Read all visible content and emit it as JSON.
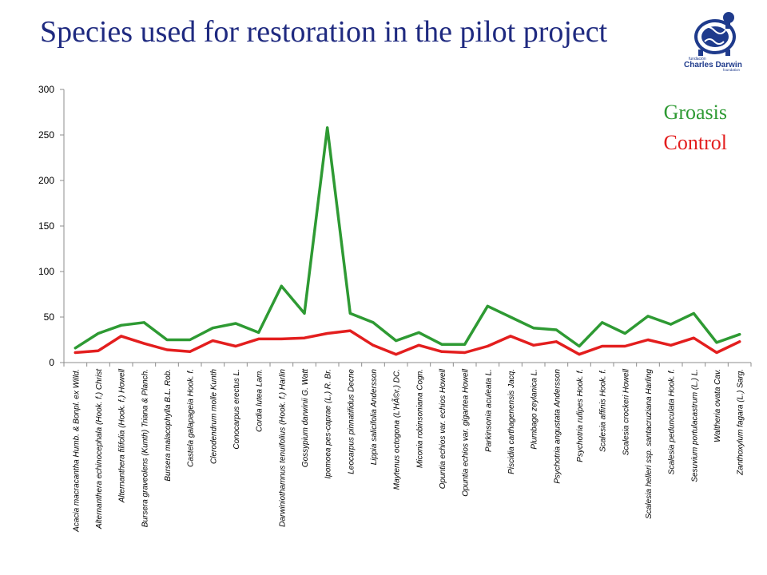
{
  "page": {
    "title": "Species used for restoration in the pilot project",
    "logo": {
      "org": "fundación",
      "name": "Charles Darwin",
      "sub": "foundation"
    }
  },
  "colors": {
    "groasis": "#2e9a33",
    "control": "#e31e1e",
    "title": "#1f2a80"
  },
  "chart_data": {
    "type": "line",
    "title": "Species used for restoration in the pilot project",
    "xlabel": "",
    "ylabel": "",
    "ylim": [
      0,
      300
    ],
    "yticks": [
      0,
      50,
      100,
      150,
      200,
      250,
      300
    ],
    "grid": false,
    "legend_position": "top-right",
    "categories": [
      "Acacia macracantha Humb. & Bonpl. ex Willd.",
      "Alternanthera echinocephala (Hook. f.) Christ",
      "Alternanthera filifolia (Hook. f.) Howell",
      "Bursera graveolens (Kunth) Triana & Planch.",
      "Bursera malacophylla B.L. Rob.",
      "Castela galapageia Hook. f.",
      "Clerodendrum molle Kunth",
      "Conocarpus erectus L.",
      "Cordia lutea Lam.",
      "Darwiniothamnus tenuifolius (Hook. f.) Harlin",
      "Gossypium darwinii G. Watt",
      "Ipomoea pes-caprae (L.) R. Br.",
      "Leocarpus pinnatifidus Decne",
      "Lippia salicifolia Andersson",
      "Maytenus octogona (L'HÃ©r.) DC.",
      "Miconia robinsoniana Cogn.",
      "Opuntia echios var. echios Howell",
      "Opuntia echios var. gigantea Howell",
      "Parkinsonia aculeata L.",
      "Piscidia carthagenensis Jacq.",
      "Plumbago zeylanica L.",
      "Psychotria angustata Andersson",
      "Psychotria rufipes Hook. f.",
      "Scalesia affinis Hook. f.",
      "Scalesia crockeri Howell",
      "Scalesia helleri ssp. santacruziana Harling",
      "Scalesia pedunculata Hook. f.",
      "Sesuvium portulacastrum (L.) L.",
      "Waltheria ovata Cav.",
      "Zanthoxylum fagara (L.) Sarg."
    ],
    "series": [
      {
        "name": "Groasis",
        "values": [
          16,
          32,
          41,
          44,
          25,
          25,
          38,
          43,
          33,
          84,
          54,
          258,
          54,
          44,
          24,
          33,
          20,
          20,
          62,
          50,
          38,
          36,
          18,
          44,
          32,
          51,
          42,
          54,
          22,
          31
        ]
      },
      {
        "name": "Control",
        "values": [
          11,
          13,
          29,
          21,
          14,
          12,
          24,
          18,
          26,
          26,
          27,
          32,
          35,
          19,
          9,
          19,
          12,
          11,
          18,
          29,
          19,
          23,
          9,
          18,
          18,
          25,
          19,
          27,
          11,
          23
        ]
      }
    ]
  }
}
